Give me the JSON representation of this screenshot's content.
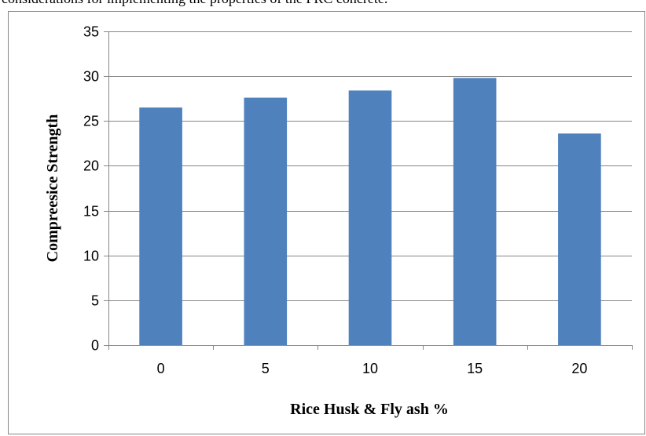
{
  "header_text": "considerations for implementing the properties of the FRC concrete.",
  "chart_data": {
    "type": "bar",
    "title": "",
    "xlabel": "Rice Husk & Fly ash %",
    "ylabel": "Compreesice Strength",
    "categories": [
      "0",
      "5",
      "10",
      "15",
      "20"
    ],
    "series": [
      {
        "values": [
          26.5,
          27.6,
          28.4,
          29.8,
          23.6
        ]
      }
    ],
    "ylim": [
      0,
      35
    ],
    "yticks": [
      0,
      5,
      10,
      15,
      20,
      25,
      30,
      35
    ],
    "grid": true,
    "legend": "none",
    "bar_color": "#4F81BD",
    "grid_color": "#868686"
  }
}
